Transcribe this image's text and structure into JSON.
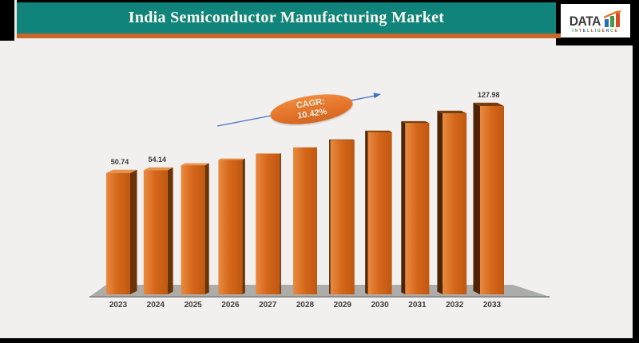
{
  "header": {
    "title": "India Semiconductor Manufacturing Market"
  },
  "logo": {
    "word": "DATA",
    "subtext": "INTELLIGENCE",
    "bar_colors": [
      "#2B6CB0",
      "#3E9B47",
      "#D84A27"
    ],
    "arrow_color": "#E87722"
  },
  "annotation": {
    "line1": "CAGR:",
    "line2": "10.42%"
  },
  "chart_data": {
    "type": "bar",
    "title": "India Semiconductor Manufacturing Market",
    "categories": [
      "2023",
      "2024",
      "2025",
      "2026",
      "2027",
      "2028",
      "2029",
      "2030",
      "2031",
      "2032",
      "2033"
    ],
    "values": [
      50.74,
      54.14,
      59.78,
      66.01,
      72.89,
      80.48,
      88.87,
      98.13,
      108.35,
      119.64,
      127.98
    ],
    "visible_value_labels": {
      "2023": "50.74",
      "2024": "54.14",
      "2033": "127.98"
    },
    "cagr_percent": "10.42%",
    "axes_visible": false,
    "grid": "off",
    "legend": "off",
    "style": "3d-perspective-bars",
    "colors": {
      "bar_front_light": "#E0772B",
      "bar_front_dark": "#C05810",
      "bar_side_left_view": "#6B3208",
      "bar_side_right_view": "#4E2405",
      "bar_top_light": "#E9904C",
      "bar_top_dark": "#7A3E0E",
      "floor": "#ACACAA",
      "floor_edge": "#8C8C8A",
      "trend_arrow": "#4472C4",
      "label_text": "#3C3C3C"
    }
  }
}
